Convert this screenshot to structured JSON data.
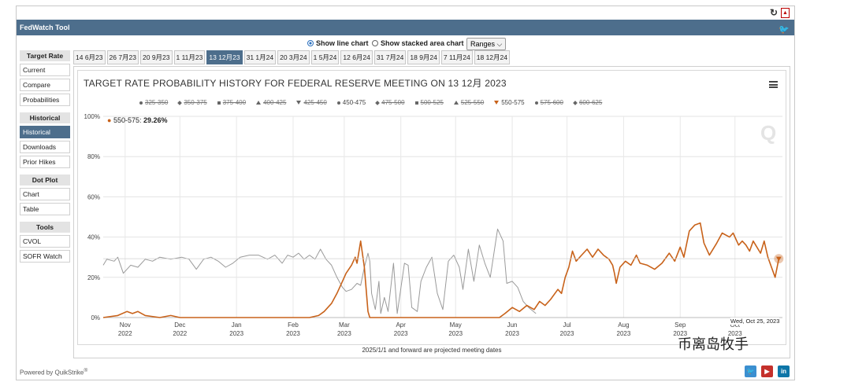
{
  "app": {
    "title": "FedWatch Tool"
  },
  "toggle": {
    "line_label": "Show line chart",
    "stacked_label": "Show stacked area chart",
    "ranges_label": "Ranges"
  },
  "sidebar": [
    {
      "header": "Target Rate",
      "items": [
        {
          "label": "Current",
          "active": false
        },
        {
          "label": "Compare",
          "active": false
        },
        {
          "label": "Probabilities",
          "active": false
        }
      ]
    },
    {
      "header": "Historical",
      "items": [
        {
          "label": "Historical",
          "active": true
        },
        {
          "label": "Downloads",
          "active": false
        },
        {
          "label": "Prior Hikes",
          "active": false
        }
      ]
    },
    {
      "header": "Dot Plot",
      "items": [
        {
          "label": "Chart",
          "active": false
        },
        {
          "label": "Table",
          "active": false
        }
      ]
    },
    {
      "header": "Tools",
      "items": [
        {
          "label": "CVOL",
          "active": false
        },
        {
          "label": "SOFR Watch",
          "active": false
        }
      ]
    }
  ],
  "tabs": [
    {
      "label": "14 6月23",
      "active": false
    },
    {
      "label": "26 7月23",
      "active": false
    },
    {
      "label": "20 9月23",
      "active": false
    },
    {
      "label": "1 11月23",
      "active": false
    },
    {
      "label": "13 12月23",
      "active": true
    },
    {
      "label": "31 1月24",
      "active": false
    },
    {
      "label": "20 3月24",
      "active": false
    },
    {
      "label": "1 5月24",
      "active": false
    },
    {
      "label": "12 6月24",
      "active": false
    },
    {
      "label": "31 7月24",
      "active": false
    },
    {
      "label": "18 9月24",
      "active": false
    },
    {
      "label": "7 11月24",
      "active": false
    },
    {
      "label": "18 12月24",
      "active": false
    }
  ],
  "chart_title": "TARGET RATE PROBABILITY HISTORY FOR FEDERAL RESERVE MEETING ON 13 12月 2023",
  "tooltip": {
    "label": "550-575",
    "value": "29.26%"
  },
  "date_stamp": "Wed, Oct 25, 2023",
  "footnote": "2025/1/1 and forward are projected meeting dates",
  "powered": "Powered by",
  "powered_brand": "QuikStrike",
  "watermark": "币离岛牧手",
  "colors": {
    "highlight": "#c8621a",
    "other_series": "#9a9a9a",
    "header": "#4d6e8c"
  },
  "chart_data": {
    "type": "line",
    "title": "TARGET RATE PROBABILITY HISTORY FOR FEDERAL RESERVE MEETING ON 13 12月 2023",
    "ylim": [
      0,
      100
    ],
    "yticks": [
      "0%",
      "20%",
      "40%",
      "60%",
      "80%",
      "100%"
    ],
    "xticks": [
      {
        "label": "Nov",
        "year": "2022",
        "x": "2022-11-01"
      },
      {
        "label": "Dec",
        "year": "2022",
        "x": "2022-12-01"
      },
      {
        "label": "Jan",
        "year": "2023",
        "x": "2023-01-01"
      },
      {
        "label": "Feb",
        "year": "2023",
        "x": "2023-02-01"
      },
      {
        "label": "Mar",
        "year": "2023",
        "x": "2023-03-01"
      },
      {
        "label": "Apr",
        "year": "2023",
        "x": "2023-04-01"
      },
      {
        "label": "May",
        "year": "2023",
        "x": "2023-05-01"
      },
      {
        "label": "Jun",
        "year": "2023",
        "x": "2023-06-01"
      },
      {
        "label": "Jul",
        "year": "2023",
        "x": "2023-07-01"
      },
      {
        "label": "Aug",
        "year": "2023",
        "x": "2023-08-01"
      },
      {
        "label": "Sep",
        "year": "2023",
        "x": "2023-09-01"
      },
      {
        "label": "Oct",
        "year": "2023",
        "x": "2023-10-01"
      }
    ],
    "legend": [
      {
        "name": "325-350",
        "marker": "circle",
        "visible": false
      },
      {
        "name": "350-375",
        "marker": "diamond",
        "visible": false
      },
      {
        "name": "375-400",
        "marker": "square",
        "visible": false
      },
      {
        "name": "400-425",
        "marker": "triangle",
        "visible": false
      },
      {
        "name": "425-450",
        "marker": "triangle-down",
        "visible": false
      },
      {
        "name": "450-475",
        "marker": "circle",
        "visible": true
      },
      {
        "name": "475-500",
        "marker": "diamond",
        "visible": false
      },
      {
        "name": "500-525",
        "marker": "square",
        "visible": false
      },
      {
        "name": "525-550",
        "marker": "triangle",
        "visible": false
      },
      {
        "name": "550-575",
        "marker": "triangle-down",
        "visible": true
      },
      {
        "name": "575-600",
        "marker": "circle",
        "visible": false
      },
      {
        "name": "600-625",
        "marker": "diamond",
        "visible": false
      }
    ],
    "series": [
      {
        "name": "550-575",
        "color": "#c8621a",
        "points": [
          [
            "2022-10-20",
            0
          ],
          [
            "2022-10-28",
            1
          ],
          [
            "2022-11-02",
            3
          ],
          [
            "2022-11-05",
            2
          ],
          [
            "2022-11-08",
            3
          ],
          [
            "2022-11-12",
            1
          ],
          [
            "2022-11-20",
            0
          ],
          [
            "2022-11-26",
            1
          ],
          [
            "2022-12-01",
            0
          ],
          [
            "2023-01-15",
            0
          ],
          [
            "2023-02-10",
            0
          ],
          [
            "2023-02-15",
            1
          ],
          [
            "2023-02-18",
            3
          ],
          [
            "2023-02-22",
            7
          ],
          [
            "2023-02-25",
            12
          ],
          [
            "2023-02-28",
            18
          ],
          [
            "2023-03-02",
            22
          ],
          [
            "2023-03-05",
            26
          ],
          [
            "2023-03-07",
            30
          ],
          [
            "2023-03-08",
            27
          ],
          [
            "2023-03-10",
            38
          ],
          [
            "2023-03-12",
            25
          ],
          [
            "2023-03-14",
            3
          ],
          [
            "2023-03-15",
            0
          ],
          [
            "2023-05-25",
            0
          ],
          [
            "2023-05-28",
            2
          ],
          [
            "2023-06-01",
            5
          ],
          [
            "2023-06-05",
            3
          ],
          [
            "2023-06-09",
            6
          ],
          [
            "2023-06-13",
            4
          ],
          [
            "2023-06-16",
            8
          ],
          [
            "2023-06-19",
            6
          ],
          [
            "2023-06-22",
            9
          ],
          [
            "2023-06-26",
            14
          ],
          [
            "2023-06-28",
            12
          ],
          [
            "2023-06-30",
            20
          ],
          [
            "2023-07-02",
            25
          ],
          [
            "2023-07-04",
            33
          ],
          [
            "2023-07-06",
            28
          ],
          [
            "2023-07-09",
            31
          ],
          [
            "2023-07-12",
            34
          ],
          [
            "2023-07-15",
            30
          ],
          [
            "2023-07-18",
            34
          ],
          [
            "2023-07-21",
            31
          ],
          [
            "2023-07-24",
            29
          ],
          [
            "2023-07-26",
            26
          ],
          [
            "2023-07-27",
            22
          ],
          [
            "2023-07-28",
            17
          ],
          [
            "2023-07-30",
            25
          ],
          [
            "2023-08-02",
            28
          ],
          [
            "2023-08-05",
            26
          ],
          [
            "2023-08-08",
            31
          ],
          [
            "2023-08-10",
            27
          ],
          [
            "2023-08-14",
            26
          ],
          [
            "2023-08-18",
            24
          ],
          [
            "2023-08-22",
            27
          ],
          [
            "2023-08-26",
            32
          ],
          [
            "2023-08-29",
            28
          ],
          [
            "2023-09-01",
            35
          ],
          [
            "2023-09-03",
            30
          ],
          [
            "2023-09-06",
            43
          ],
          [
            "2023-09-09",
            46
          ],
          [
            "2023-09-12",
            47
          ],
          [
            "2023-09-14",
            37
          ],
          [
            "2023-09-17",
            31
          ],
          [
            "2023-09-21",
            37
          ],
          [
            "2023-09-24",
            42
          ],
          [
            "2023-09-28",
            40
          ],
          [
            "2023-09-30",
            42
          ],
          [
            "2023-10-03",
            36
          ],
          [
            "2023-10-05",
            38
          ],
          [
            "2023-10-07",
            36
          ],
          [
            "2023-10-09",
            33
          ],
          [
            "2023-10-11",
            38
          ],
          [
            "2023-10-13",
            35
          ],
          [
            "2023-10-15",
            32
          ],
          [
            "2023-10-17",
            38
          ],
          [
            "2023-10-19",
            30
          ],
          [
            "2023-10-21",
            25
          ],
          [
            "2023-10-23",
            20
          ],
          [
            "2023-10-25",
            29.26
          ]
        ]
      },
      {
        "name": "450-475",
        "color": "#9a9a9a",
        "points": [
          [
            "2022-10-20",
            26
          ],
          [
            "2022-10-22",
            29
          ],
          [
            "2022-10-26",
            28
          ],
          [
            "2022-10-28",
            30
          ],
          [
            "2022-10-31",
            22
          ],
          [
            "2022-11-04",
            26
          ],
          [
            "2022-11-08",
            25
          ],
          [
            "2022-11-12",
            29
          ],
          [
            "2022-11-16",
            28
          ],
          [
            "2022-11-20",
            30
          ],
          [
            "2022-11-26",
            29
          ],
          [
            "2022-12-02",
            30
          ],
          [
            "2022-12-06",
            29
          ],
          [
            "2022-12-10",
            24
          ],
          [
            "2022-12-14",
            29
          ],
          [
            "2022-12-18",
            30
          ],
          [
            "2022-12-22",
            28
          ],
          [
            "2022-12-26",
            25
          ],
          [
            "2022-12-30",
            27
          ],
          [
            "2023-01-03",
            30
          ],
          [
            "2023-01-08",
            31
          ],
          [
            "2023-01-13",
            31
          ],
          [
            "2023-01-18",
            29
          ],
          [
            "2023-01-22",
            31
          ],
          [
            "2023-01-26",
            27
          ],
          [
            "2023-01-29",
            31
          ],
          [
            "2023-02-01",
            30
          ],
          [
            "2023-02-04",
            32
          ],
          [
            "2023-02-07",
            29
          ],
          [
            "2023-02-10",
            31
          ],
          [
            "2023-02-13",
            29
          ],
          [
            "2023-02-16",
            34
          ],
          [
            "2023-02-19",
            29
          ],
          [
            "2023-02-22",
            26
          ],
          [
            "2023-02-25",
            20
          ],
          [
            "2023-02-28",
            15
          ],
          [
            "2023-03-02",
            13
          ],
          [
            "2023-03-05",
            14
          ],
          [
            "2023-03-08",
            17
          ],
          [
            "2023-03-10",
            16
          ],
          [
            "2023-03-12",
            25
          ],
          [
            "2023-03-14",
            32
          ],
          [
            "2023-03-15",
            28
          ],
          [
            "2023-03-16",
            12
          ],
          [
            "2023-03-18",
            4
          ],
          [
            "2023-03-20",
            18
          ],
          [
            "2023-03-21",
            2
          ],
          [
            "2023-03-23",
            10
          ],
          [
            "2023-03-25",
            3
          ],
          [
            "2023-03-28",
            27
          ],
          [
            "2023-03-30",
            2
          ],
          [
            "2023-04-03",
            27
          ],
          [
            "2023-04-05",
            26
          ],
          [
            "2023-04-07",
            5
          ],
          [
            "2023-04-10",
            3
          ],
          [
            "2023-04-12",
            18
          ],
          [
            "2023-04-15",
            25
          ],
          [
            "2023-04-18",
            30
          ],
          [
            "2023-04-21",
            12
          ],
          [
            "2023-04-24",
            4
          ],
          [
            "2023-04-27",
            28
          ],
          [
            "2023-04-30",
            31
          ],
          [
            "2023-05-03",
            25
          ],
          [
            "2023-05-05",
            14
          ],
          [
            "2023-05-08",
            34
          ],
          [
            "2023-05-11",
            18
          ],
          [
            "2023-05-14",
            36
          ],
          [
            "2023-05-17",
            27
          ],
          [
            "2023-05-20",
            20
          ],
          [
            "2023-05-24",
            44
          ],
          [
            "2023-05-27",
            38
          ],
          [
            "2023-05-29",
            17
          ],
          [
            "2023-06-01",
            18
          ],
          [
            "2023-06-04",
            15
          ],
          [
            "2023-06-07",
            8
          ],
          [
            "2023-06-10",
            5
          ],
          [
            "2023-06-14",
            2
          ]
        ]
      }
    ]
  }
}
